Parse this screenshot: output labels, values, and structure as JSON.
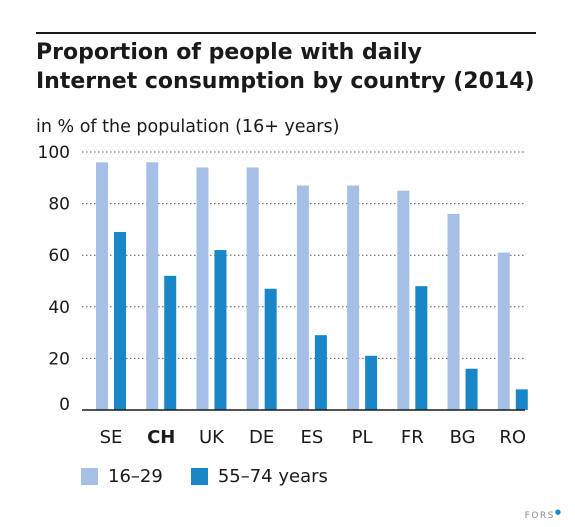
{
  "chart_data": {
    "type": "bar",
    "title_lines": [
      "Proportion of people with daily",
      "Internet consumption by country (2014)"
    ],
    "subtitle": "in % of the population (16+ years)",
    "xlabel": "",
    "ylabel": "",
    "ylim": [
      0,
      100
    ],
    "yticks": [
      0,
      20,
      40,
      60,
      80,
      100
    ],
    "grid": "horizontal-dotted",
    "categories": [
      "SE",
      "CH",
      "UK",
      "DE",
      "ES",
      "PL",
      "FR",
      "BG",
      "RO"
    ],
    "highlighted_category": "CH",
    "series": [
      {
        "name": "16–29",
        "color": "#a5bfe6",
        "values": [
          96,
          96,
          94,
          94,
          87,
          87,
          85,
          76,
          61
        ]
      },
      {
        "name": "55–74 years",
        "color": "#1a86c8",
        "values": [
          69,
          52,
          62,
          47,
          29,
          21,
          48,
          16,
          8
        ]
      }
    ],
    "legend_placement": "bottom-left"
  },
  "footer": {
    "logo_text": "FORS",
    "logo_mark": "●",
    "mark_color": "#1a86c8"
  }
}
